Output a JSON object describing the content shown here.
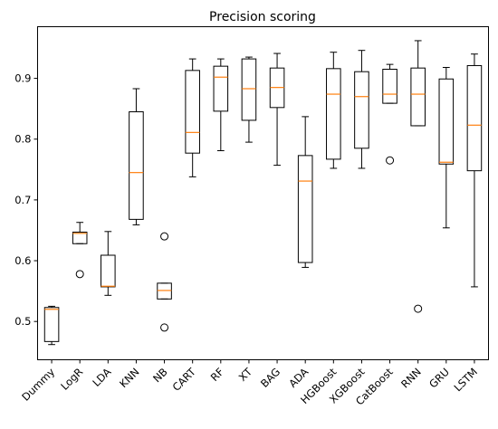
{
  "chart_data": {
    "type": "box",
    "title": "Precision scoring",
    "xlabel": "",
    "ylabel": "",
    "ylim": [
      0.437,
      0.985
    ],
    "yticks": [
      0.5,
      0.6,
      0.7,
      0.8,
      0.9
    ],
    "ytick_labels": [
      "0.5",
      "0.6",
      "0.7",
      "0.8",
      "0.9"
    ],
    "grid": false,
    "colors": {
      "box": "#000000",
      "median": "#ff7f0e",
      "flier": "#000000"
    },
    "categories": [
      "Dummy",
      "LogR",
      "LDA",
      "KNN",
      "NB",
      "CART",
      "RF",
      "XT",
      "BAG",
      "ADA",
      "HGBoost",
      "XGBoost",
      "CatBoost",
      "RNN",
      "GRU",
      "LSTM"
    ],
    "boxes": [
      {
        "whisker_low": 0.462,
        "q1": 0.467,
        "median": 0.52,
        "q3": 0.523,
        "whisker_high": 0.525,
        "fliers": []
      },
      {
        "whisker_low": 0.628,
        "q1": 0.628,
        "median": 0.645,
        "q3": 0.647,
        "whisker_high": 0.663,
        "fliers": [
          0.578
        ]
      },
      {
        "whisker_low": 0.543,
        "q1": 0.557,
        "median": 0.558,
        "q3": 0.609,
        "whisker_high": 0.648,
        "fliers": []
      },
      {
        "whisker_low": 0.659,
        "q1": 0.668,
        "median": 0.745,
        "q3": 0.845,
        "whisker_high": 0.883,
        "fliers": []
      },
      {
        "whisker_low": 0.537,
        "q1": 0.537,
        "median": 0.551,
        "q3": 0.563,
        "whisker_high": 0.563,
        "fliers": [
          0.64,
          0.49
        ]
      },
      {
        "whisker_low": 0.738,
        "q1": 0.777,
        "median": 0.811,
        "q3": 0.913,
        "whisker_high": 0.932,
        "fliers": []
      },
      {
        "whisker_low": 0.781,
        "q1": 0.846,
        "median": 0.902,
        "q3": 0.92,
        "whisker_high": 0.932,
        "fliers": []
      },
      {
        "whisker_low": 0.795,
        "q1": 0.831,
        "median": 0.883,
        "q3": 0.932,
        "whisker_high": 0.935,
        "fliers": []
      },
      {
        "whisker_low": 0.757,
        "q1": 0.852,
        "median": 0.885,
        "q3": 0.917,
        "whisker_high": 0.941,
        "fliers": []
      },
      {
        "whisker_low": 0.589,
        "q1": 0.597,
        "median": 0.731,
        "q3": 0.773,
        "whisker_high": 0.837,
        "fliers": []
      },
      {
        "whisker_low": 0.752,
        "q1": 0.767,
        "median": 0.874,
        "q3": 0.916,
        "whisker_high": 0.943,
        "fliers": []
      },
      {
        "whisker_low": 0.752,
        "q1": 0.785,
        "median": 0.87,
        "q3": 0.911,
        "whisker_high": 0.946,
        "fliers": []
      },
      {
        "whisker_low": 0.859,
        "q1": 0.859,
        "median": 0.874,
        "q3": 0.915,
        "whisker_high": 0.923,
        "fliers": [
          0.765
        ]
      },
      {
        "whisker_low": 0.822,
        "q1": 0.822,
        "median": 0.874,
        "q3": 0.917,
        "whisker_high": 0.962,
        "fliers": [
          0.521
        ]
      },
      {
        "whisker_low": 0.654,
        "q1": 0.759,
        "median": 0.762,
        "q3": 0.899,
        "whisker_high": 0.918,
        "fliers": []
      },
      {
        "whisker_low": 0.557,
        "q1": 0.748,
        "median": 0.823,
        "q3": 0.921,
        "whisker_high": 0.94,
        "fliers": []
      }
    ]
  }
}
